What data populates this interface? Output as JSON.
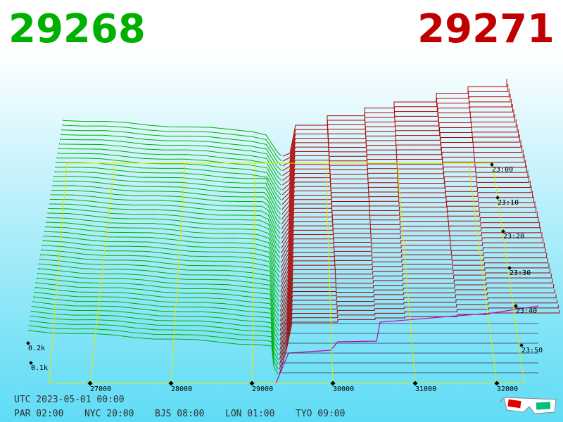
{
  "header": {
    "bid": "29268",
    "ask": "29271"
  },
  "axis": {
    "price_labels": [
      "27000",
      "28000",
      "29000",
      "30000",
      "31000",
      "32000"
    ],
    "volume_labels": [
      "0.2k",
      "0.1k"
    ],
    "time_labels": [
      "23:00",
      "23:10",
      "23:20",
      "23:30",
      "23:40",
      "23:50"
    ]
  },
  "footer": {
    "utc": "UTC 2023-05-01 00:00",
    "clocks": [
      "PAR 02:00",
      "NYC 20:00",
      "BJS 08:00",
      "LON 01:00",
      "TYO 09:00"
    ]
  }
}
